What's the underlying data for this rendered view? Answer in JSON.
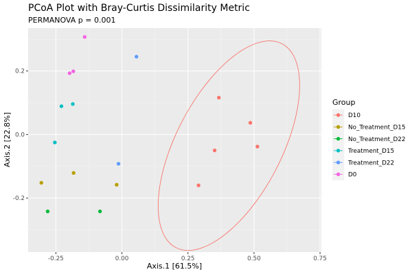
{
  "chart_data": {
    "type": "scatter",
    "title": "PCoA Plot with Bray-Curtis Dissimilarity Metric",
    "subtitle": "PERMANOVA p = 0.001",
    "xlabel": "Axis.1   [61.5%]",
    "ylabel": "Axis.2   [22.8%]",
    "xlim": [
      -0.355,
      0.755
    ],
    "ylim": [
      -0.37,
      0.335
    ],
    "x_ticks": [
      -0.25,
      0.0,
      0.25,
      0.5,
      0.75
    ],
    "x_tick_labels": [
      "-0.25",
      "0.00",
      "0.25",
      "0.50",
      "0.75"
    ],
    "y_ticks": [
      -0.2,
      0.0,
      0.2
    ],
    "y_tick_labels": [
      "-0.2",
      "0.0",
      "0.2"
    ],
    "grid": true,
    "legend": {
      "title": "Group",
      "position": "right"
    },
    "series": [
      {
        "name": "D10",
        "color": "#F8766D",
        "points": [
          [
            0.367,
            0.116
          ],
          [
            0.486,
            0.037
          ],
          [
            0.513,
            -0.038
          ],
          [
            0.351,
            -0.05
          ],
          [
            0.29,
            -0.16
          ]
        ]
      },
      {
        "name": "No_Treatment_D15",
        "color": "#B79F00",
        "points": [
          [
            -0.305,
            -0.152
          ],
          [
            -0.183,
            -0.121
          ],
          [
            -0.02,
            -0.158
          ]
        ]
      },
      {
        "name": "No_Treatment_D22",
        "color": "#00BA38",
        "points": [
          [
            -0.281,
            -0.242
          ],
          [
            -0.083,
            -0.242
          ]
        ]
      },
      {
        "name": "Treatment_D15",
        "color": "#00BFC4",
        "points": [
          [
            -0.229,
            0.089
          ],
          [
            -0.186,
            0.096
          ],
          [
            -0.254,
            -0.025
          ]
        ]
      },
      {
        "name": "Treatment_D22",
        "color": "#619CFF",
        "points": [
          [
            0.055,
            0.245
          ],
          [
            -0.013,
            -0.092
          ]
        ]
      },
      {
        "name": "D0",
        "color": "#F564E3",
        "points": [
          [
            -0.141,
            0.307
          ],
          [
            -0.198,
            0.193
          ],
          [
            -0.184,
            0.199
          ]
        ]
      }
    ],
    "ellipse": {
      "series": "D10",
      "center": [
        0.405,
        -0.035
      ],
      "semi_major": 0.38,
      "semi_minor": 0.19,
      "angle_deg": 55
    }
  }
}
